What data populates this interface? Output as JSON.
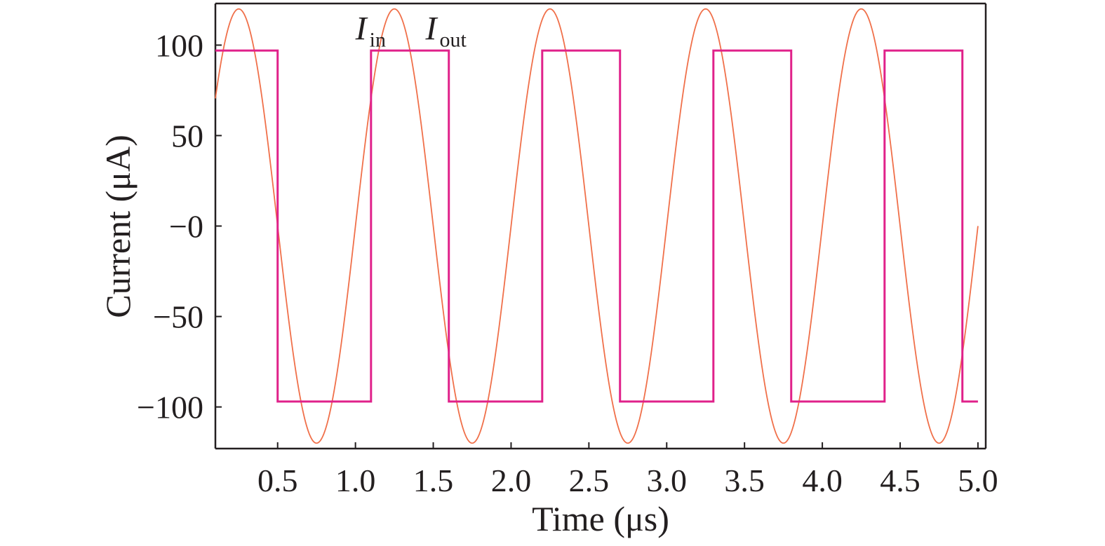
{
  "chart_data": {
    "type": "line",
    "xlabel": "Time (μs)",
    "ylabel": "Current (μA)",
    "xlim": [
      0.1,
      5.05
    ],
    "ylim": [
      -123,
      123
    ],
    "x_ticks": [
      {
        "value": 0.5,
        "label": "0.5"
      },
      {
        "value": 1.0,
        "label": "1.0"
      },
      {
        "value": 1.5,
        "label": "1.5"
      },
      {
        "value": 2.0,
        "label": "2.0"
      },
      {
        "value": 2.5,
        "label": "2.5"
      },
      {
        "value": 3.0,
        "label": "3.0"
      },
      {
        "value": 3.5,
        "label": "3.5"
      },
      {
        "value": 4.0,
        "label": "4.0"
      },
      {
        "value": 4.5,
        "label": "4.5"
      },
      {
        "value": 5.0,
        "label": "5.0"
      }
    ],
    "y_ticks": [
      {
        "value": 100,
        "label": "100"
      },
      {
        "value": 50,
        "label": "50"
      },
      {
        "value": 0,
        "label": "−0"
      },
      {
        "value": -50,
        "label": "−50"
      },
      {
        "value": -100,
        "label": "−100"
      }
    ],
    "grid": false,
    "series": [
      {
        "name": "I_in",
        "label_main": "I",
        "label_sub": "in",
        "color": "#f0704a",
        "shape": "sine",
        "amplitude": 120,
        "period_us": 1.0,
        "peaks_at_us": [
          0.25,
          1.25,
          2.25,
          3.25,
          4.25
        ],
        "troughs_at_us": [
          0.75,
          1.75,
          2.75,
          3.75,
          4.75
        ],
        "x_range": [
          0.1,
          5.0
        ]
      },
      {
        "name": "I_out",
        "label_main": "I",
        "label_sub": "out",
        "color": "#e0218a",
        "shape": "square",
        "x": [
          0.1,
          0.5,
          0.5,
          1.1,
          1.1,
          1.6,
          1.6,
          2.2,
          2.2,
          2.7,
          2.7,
          3.3,
          3.3,
          3.8,
          3.8,
          4.4,
          4.4,
          4.9,
          4.9,
          5.0
        ],
        "y": [
          97,
          97,
          -97,
          -97,
          97,
          97,
          -97,
          -97,
          97,
          97,
          -97,
          -97,
          97,
          97,
          -97,
          -97,
          97,
          97,
          -97,
          -97
        ]
      }
    ],
    "series_label_positions_us": [
      1.0,
      1.45
    ],
    "series_label_value": 103
  }
}
